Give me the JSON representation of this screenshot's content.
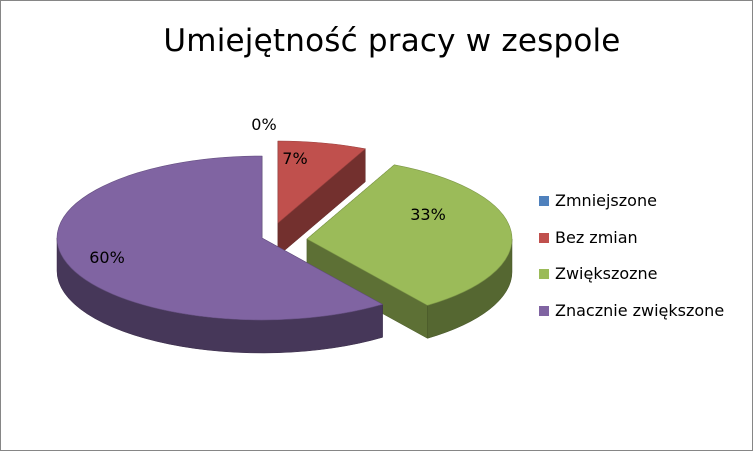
{
  "chart_data": {
    "type": "pie",
    "title": "Umiejętność pracy w zespole",
    "categories": [
      "Zmniejszone",
      "Bez zmian",
      "Zwiększozne",
      "Znacznie zwiększone"
    ],
    "values": [
      0,
      7,
      33,
      60
    ],
    "data_labels": [
      "0%",
      "7%",
      "33%",
      "60%"
    ],
    "colors": [
      "#4f81bd",
      "#c0504d",
      "#9bbb59",
      "#8064a2"
    ],
    "style": "3d-exploded",
    "legend_position": "right"
  }
}
